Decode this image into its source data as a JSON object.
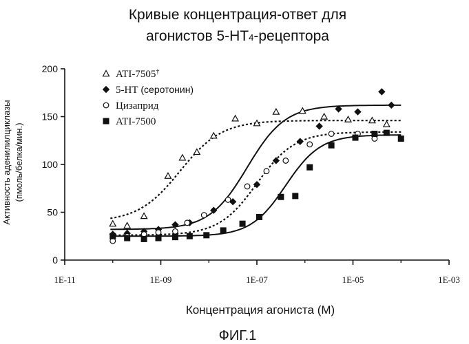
{
  "chart_data": {
    "type": "scatter",
    "title_line1": "Кривые концентрация-ответ для",
    "title_line2_prefix": "агонистов 5-HT",
    "title_line2_sub": "4",
    "title_line2_suffix": "-рецептора",
    "ylabel_line1": "Активность аденилилциклазы",
    "ylabel_line2": "(пмоль/белка/мин.)",
    "xlabel": "Концентрация агониста (М)",
    "figure_label": "ФИГ.1",
    "x_scale": "log10",
    "xlim": [
      -11,
      -3
    ],
    "ylim": [
      0,
      200
    ],
    "x_ticks": [
      {
        "value": -11,
        "label": "1E-11"
      },
      {
        "value": -9,
        "label": "1E-09"
      },
      {
        "value": -7,
        "label": "1E-07"
      },
      {
        "value": -5,
        "label": "1E-05"
      },
      {
        "value": -3,
        "label": "1E-03"
      }
    ],
    "y_ticks": [
      {
        "value": 0,
        "label": "0"
      },
      {
        "value": 50,
        "label": "50"
      },
      {
        "value": 100,
        "label": "100"
      },
      {
        "value": 150,
        "label": "150"
      },
      {
        "value": 200,
        "label": "200"
      }
    ],
    "legend_position": "top-left",
    "series": [
      {
        "key": "ati7505",
        "name": "ATI-7505",
        "name_sup": "†",
        "marker": "triangle-open",
        "line": "dashed",
        "fit": {
          "bottom": 40,
          "top": 146,
          "logEC50": -8.6,
          "hill": 1.0
        },
        "points": [
          [
            -10.0,
            38
          ],
          [
            -9.7,
            36
          ],
          [
            -9.35,
            46
          ],
          [
            -8.85,
            88
          ],
          [
            -8.55,
            107
          ],
          [
            -8.25,
            113
          ],
          [
            -7.9,
            130
          ],
          [
            -7.45,
            148
          ],
          [
            -7.0,
            143
          ],
          [
            -6.6,
            155
          ],
          [
            -6.05,
            156
          ],
          [
            -5.6,
            150
          ],
          [
            -5.1,
            147
          ],
          [
            -4.6,
            146
          ],
          [
            -4.3,
            142
          ]
        ]
      },
      {
        "key": "serotonin",
        "name": "5-HT",
        "name_suffix": " (серотонин)",
        "marker": "diamond-filled",
        "line": "solid",
        "fit": {
          "bottom": 32,
          "top": 162,
          "logEC50": -7.2,
          "hill": 1.1
        },
        "points": [
          [
            -10.0,
            27
          ],
          [
            -9.7,
            28
          ],
          [
            -9.35,
            30
          ],
          [
            -9.05,
            32
          ],
          [
            -8.7,
            37
          ],
          [
            -8.4,
            39
          ],
          [
            -7.9,
            52
          ],
          [
            -7.5,
            61
          ],
          [
            -7.0,
            79
          ],
          [
            -6.6,
            104
          ],
          [
            -6.1,
            124
          ],
          [
            -5.7,
            140
          ],
          [
            -5.3,
            158
          ],
          [
            -4.9,
            155
          ],
          [
            -4.4,
            176
          ],
          [
            -4.2,
            162
          ]
        ]
      },
      {
        "key": "cisapride",
        "name": "Цизаприд",
        "marker": "circle-open",
        "line": "dashed",
        "fit": {
          "bottom": 26,
          "top": 134,
          "logEC50": -7.0,
          "hill": 1.1
        },
        "points": [
          [
            -10.0,
            20
          ],
          [
            -9.7,
            25
          ],
          [
            -9.35,
            27
          ],
          [
            -9.05,
            29
          ],
          [
            -8.7,
            30
          ],
          [
            -8.45,
            39
          ],
          [
            -8.1,
            47
          ],
          [
            -7.6,
            63
          ],
          [
            -7.2,
            77
          ],
          [
            -6.8,
            93
          ],
          [
            -6.4,
            104
          ],
          [
            -5.9,
            121
          ],
          [
            -5.45,
            132
          ],
          [
            -4.9,
            132
          ],
          [
            -4.55,
            127
          ]
        ]
      },
      {
        "key": "ati7500",
        "name": "ATI-7500",
        "marker": "square-filled",
        "line": "solid",
        "fit": {
          "bottom": 25,
          "top": 131,
          "logEC50": -6.4,
          "hill": 1.2
        },
        "points": [
          [
            -10.0,
            25
          ],
          [
            -9.7,
            23
          ],
          [
            -9.35,
            22
          ],
          [
            -9.05,
            23
          ],
          [
            -8.7,
            24
          ],
          [
            -8.4,
            25
          ],
          [
            -8.05,
            26
          ],
          [
            -7.7,
            31
          ],
          [
            -7.3,
            38
          ],
          [
            -6.95,
            45
          ],
          [
            -6.5,
            66
          ],
          [
            -6.2,
            67
          ],
          [
            -5.9,
            97
          ],
          [
            -5.45,
            120
          ],
          [
            -4.95,
            128
          ],
          [
            -4.55,
            132
          ],
          [
            -4.3,
            133
          ],
          [
            -4.0,
            127
          ]
        ]
      }
    ]
  }
}
